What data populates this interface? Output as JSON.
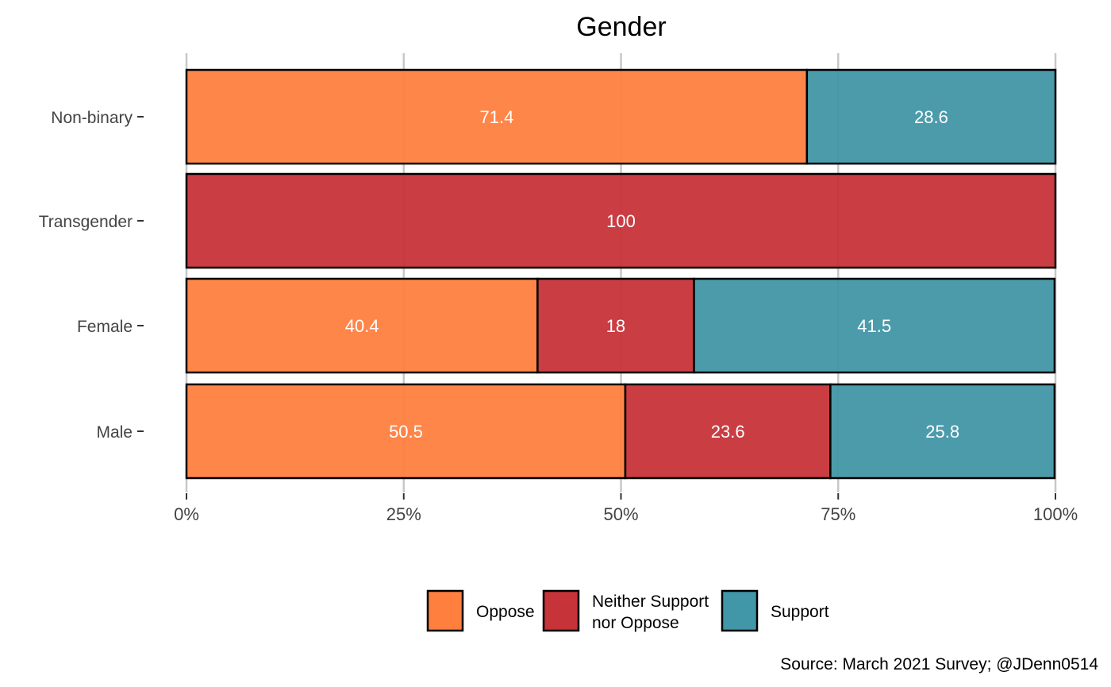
{
  "chart_data": {
    "type": "bar",
    "orientation": "horizontal",
    "stacked": "percent",
    "title": "Gender",
    "caption": "Source: March 2021 Survey; @JDenn0514",
    "xlabel": "",
    "ylabel": "",
    "xlim": [
      0,
      100
    ],
    "x_ticks": [
      "0%",
      "25%",
      "50%",
      "75%",
      "100%"
    ],
    "x_tick_values": [
      0,
      25,
      50,
      75,
      100
    ],
    "grid": true,
    "legend_position": "bottom",
    "categories": [
      "Non-binary",
      "Transgender",
      "Female",
      "Male"
    ],
    "series": [
      {
        "name": "Oppose",
        "color": "#FF7F3F",
        "values": [
          71.4,
          0,
          40.4,
          50.5
        ],
        "labels": [
          "71.4",
          "",
          "40.4",
          "50.5"
        ]
      },
      {
        "name": "Neither Support nor Oppose",
        "legend_lines": [
          "Neither Support",
          "nor Oppose"
        ],
        "color": "#C63339",
        "values": [
          0,
          100,
          18,
          23.6
        ],
        "labels": [
          "",
          "100",
          "18",
          "23.6"
        ]
      },
      {
        "name": "Support",
        "color": "#4196A7",
        "values": [
          28.6,
          0,
          41.5,
          25.8
        ],
        "labels": [
          "28.6",
          "",
          "41.5",
          "25.8"
        ]
      }
    ]
  }
}
